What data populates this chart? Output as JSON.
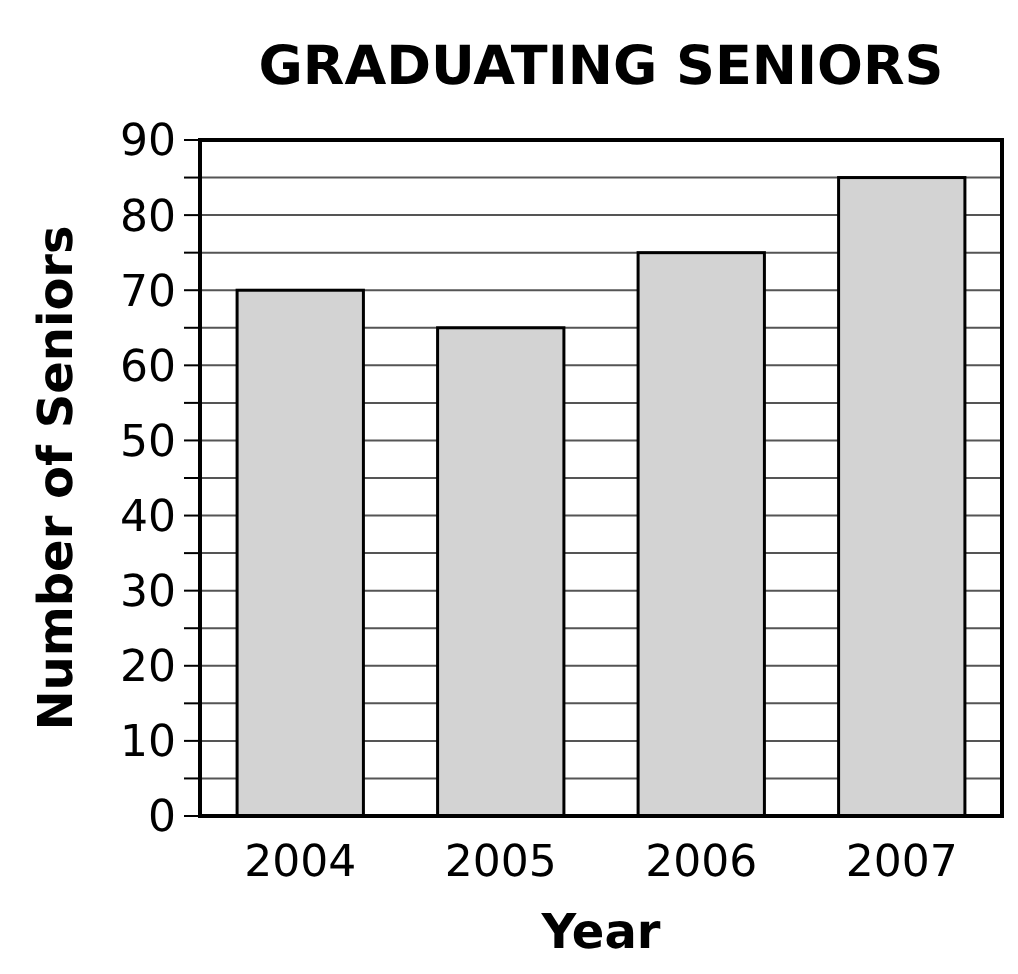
{
  "chart_data": {
    "type": "bar",
    "title": "GRADUATING SENIORS",
    "xlabel": "Year",
    "ylabel": "Number of Seniors",
    "categories": [
      "2004",
      "2005",
      "2006",
      "2007"
    ],
    "values": [
      70,
      65,
      75,
      85
    ],
    "color": "#d3d3d3",
    "ylim": [
      0,
      90
    ],
    "yticks": [
      0,
      {
        "value": 5,
        "label": null
      },
      10,
      {
        "value": 15,
        "label": null
      },
      20,
      {
        "value": 25,
        "label": null
      },
      30,
      {
        "value": 35,
        "label": null
      },
      40,
      {
        "value": 45,
        "label": null
      },
      50,
      {
        "value": 55,
        "label": null
      },
      60,
      {
        "value": 65,
        "label": null
      },
      70,
      {
        "value": 75,
        "label": null
      },
      80,
      {
        "value": 85,
        "label": null
      },
      90
    ],
    "grid": "y"
  }
}
